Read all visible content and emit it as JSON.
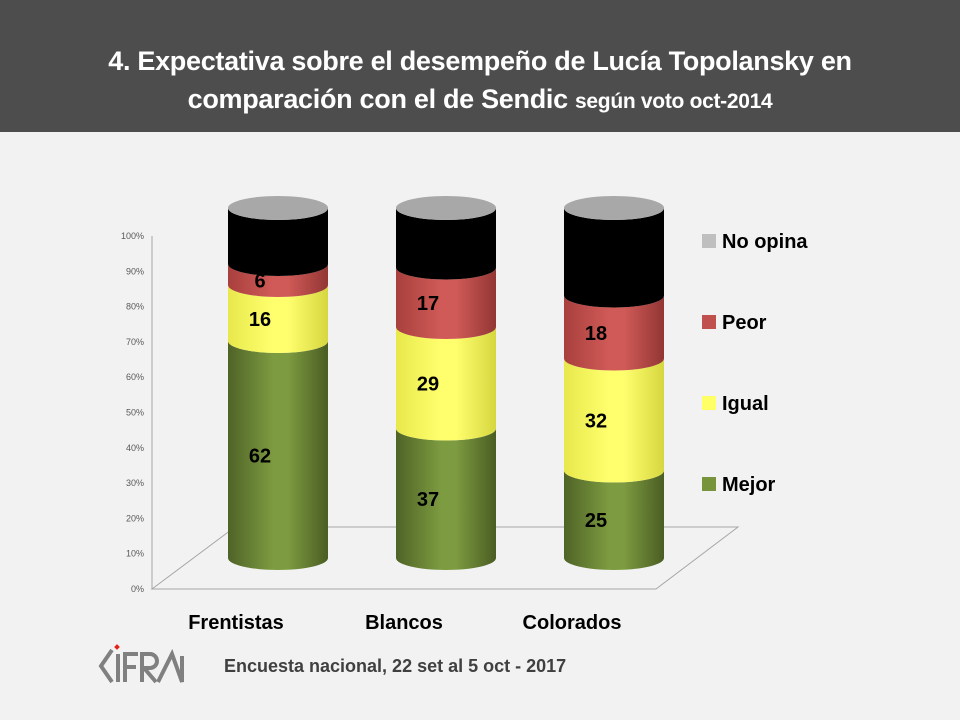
{
  "header": {
    "title_line1": "4. Expectativa sobre el desempeño de Lucía Topolansky en",
    "title_line2_main": "comparación con el de Sendic",
    "title_line2_small": "según voto oct-2014"
  },
  "footer": {
    "logo_text": "CIFRA",
    "survey_note": "Encuesta nacional,  22 set al 5 oct - 2017"
  },
  "chart_data": {
    "type": "bar",
    "stacked": true,
    "style": "3d-cylinder-100-percent",
    "title": "4. Expectativa sobre el desempeño de Lucía Topolansky en comparación con el de Sendic según voto oct-2014",
    "xlabel": "",
    "ylabel": "",
    "ylim": [
      0,
      100
    ],
    "yticks": [
      "0%",
      "10%",
      "20%",
      "30%",
      "40%",
      "50%",
      "60%",
      "70%",
      "80%",
      "90%",
      "100%"
    ],
    "categories": [
      "Frentistas",
      "Blancos",
      "Colorados"
    ],
    "series": [
      {
        "name": "Mejor",
        "color": "#77933c",
        "values": [
          62,
          37,
          25
        ]
      },
      {
        "name": "Igual",
        "color": "#ffff66",
        "values": [
          16,
          29,
          32
        ]
      },
      {
        "name": "Peor",
        "color": "#c0504d",
        "values": [
          6,
          17,
          18
        ]
      },
      {
        "name": "No opina",
        "color": "#bfbfbf",
        "values": [
          16,
          17,
          25
        ]
      }
    ],
    "legend": {
      "position": "right",
      "order": [
        "No opina",
        "Peor",
        "Igual",
        "Mejor"
      ]
    },
    "grid": false
  }
}
